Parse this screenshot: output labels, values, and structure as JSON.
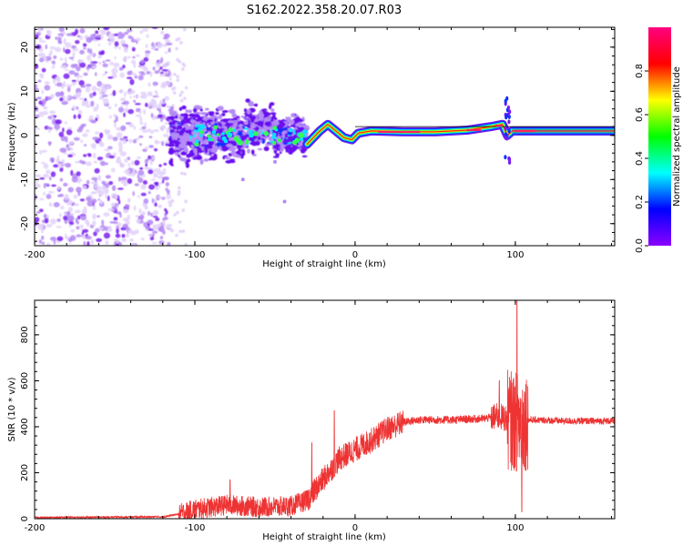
{
  "title": "S162.2022.358.20.07.R03",
  "chart_data": [
    {
      "type": "heatmap",
      "xlabel": "Height of straight line (km)",
      "ylabel": "Frequency (Hz)",
      "xlim": [
        -200,
        162
      ],
      "ylim": [
        -25,
        24.5
      ],
      "xticks": [
        "-200",
        "-100",
        "0",
        "100"
      ],
      "yticks": [
        "-20",
        "-10",
        "0",
        "10",
        "20"
      ],
      "colorbar": {
        "label": "Normalized spectral amplitude",
        "range": [
          0,
          1
        ],
        "ticks": [
          "0.0",
          "0.2",
          "0.4",
          "0.6",
          "0.8"
        ],
        "colors": [
          "#ffffff",
          "#8b00ff",
          "#0000ff",
          "#00ffff",
          "#00ff00",
          "#ffff00",
          "#ff0000",
          "#ff0080"
        ]
      },
      "regions": [
        {
          "name": "noise",
          "x": [
            -200,
            -115
          ],
          "freq_spread": 24,
          "amplitude": 0.2
        },
        {
          "name": "turbulent",
          "x": [
            -115,
            -30
          ],
          "freq_center": 0,
          "freq_spread": 5,
          "amplitude": 0.35
        },
        {
          "name": "carrier",
          "x": [
            -30,
            162
          ],
          "freq_center": 1,
          "amplitude": 0.8
        }
      ],
      "carrier_track": [
        [
          -30,
          -2
        ],
        [
          -22,
          1
        ],
        [
          -17,
          2.5
        ],
        [
          -12,
          1
        ],
        [
          -7,
          -0.5
        ],
        [
          -2,
          -1
        ],
        [
          2,
          0.5
        ],
        [
          10,
          1
        ],
        [
          30,
          0.8
        ],
        [
          50,
          0.8
        ],
        [
          70,
          1.2
        ],
        [
          85,
          2
        ],
        [
          92,
          2.5
        ],
        [
          95,
          0
        ],
        [
          98,
          1
        ],
        [
          120,
          1
        ],
        [
          162,
          1
        ]
      ]
    },
    {
      "type": "line",
      "xlabel": "Height of straight line (km)",
      "ylabel": "SNR (10 * v/v)",
      "xlim": [
        -200,
        162
      ],
      "ylim": [
        0,
        950
      ],
      "xticks": [
        "-200",
        "-100",
        "0",
        "100"
      ],
      "yticks": [
        "0",
        "200",
        "400",
        "600",
        "800"
      ],
      "color": "#ee3333",
      "envelope": [
        [
          -200,
          5
        ],
        [
          -120,
          8
        ],
        [
          -110,
          20
        ],
        [
          -100,
          40
        ],
        [
          -80,
          60
        ],
        [
          -60,
          50
        ],
        [
          -40,
          55
        ],
        [
          -30,
          80
        ],
        [
          -20,
          170
        ],
        [
          -10,
          260
        ],
        [
          0,
          300
        ],
        [
          10,
          340
        ],
        [
          20,
          390
        ],
        [
          30,
          420
        ],
        [
          40,
          430
        ],
        [
          60,
          430
        ],
        [
          80,
          435
        ],
        [
          90,
          445
        ],
        [
          100,
          420
        ],
        [
          110,
          430
        ],
        [
          130,
          425
        ],
        [
          162,
          425
        ]
      ],
      "spikes": [
        {
          "x": -78,
          "y": 170
        },
        {
          "x": -27,
          "y": 330
        },
        {
          "x": -13,
          "y": 470
        },
        {
          "x": 90,
          "y": 600
        },
        {
          "x": 101,
          "y": 950
        },
        {
          "x": 104,
          "y": 30
        }
      ]
    }
  ]
}
